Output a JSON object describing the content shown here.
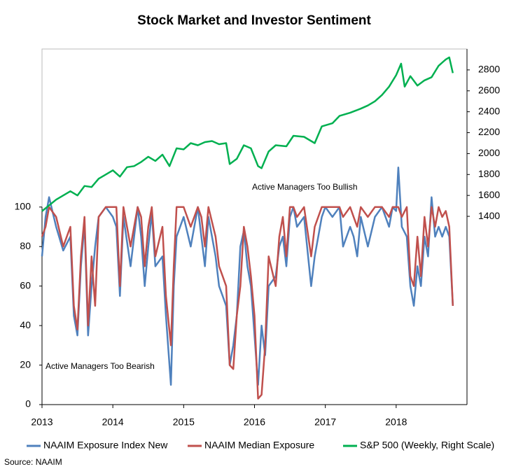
{
  "chart_data": {
    "type": "line",
    "title": "Stock Market and Investor Sentiment",
    "source": "Source:  NAAIM",
    "annotations": [
      "Active Managers  Too Bullish",
      "Active Managers  Too Bearish"
    ],
    "xlim": [
      2013,
      2019
    ],
    "xticks": [
      2013,
      2014,
      2015,
      2016,
      2017,
      2018
    ],
    "ylim": [
      0,
      180
    ],
    "yticks": [
      0,
      20,
      40,
      60,
      80,
      100
    ],
    "y2lim": [
      -400,
      3000
    ],
    "y2ticks": [
      1400,
      1600,
      1800,
      2000,
      2200,
      2400,
      2600,
      2800
    ],
    "series": [
      {
        "name": "NAAIM Exposure Index New",
        "color": "#4f81bd",
        "x": [
          2013.0,
          2013.05,
          2013.1,
          2013.2,
          2013.3,
          2013.4,
          2013.45,
          2013.5,
          2013.55,
          2013.6,
          2013.65,
          2013.7,
          2013.75,
          2013.8,
          2013.9,
          2014.0,
          2014.05,
          2014.1,
          2014.15,
          2014.25,
          2014.35,
          2014.4,
          2014.45,
          2014.5,
          2014.55,
          2014.6,
          2014.7,
          2014.75,
          2014.82,
          2014.86,
          2014.9,
          2015.0,
          2015.1,
          2015.2,
          2015.25,
          2015.3,
          2015.35,
          2015.45,
          2015.5,
          2015.55,
          2015.6,
          2015.65,
          2015.7,
          2015.75,
          2015.8,
          2015.85,
          2015.9,
          2015.95,
          2016.0,
          2016.05,
          2016.1,
          2016.15,
          2016.2,
          2016.3,
          2016.35,
          2016.4,
          2016.45,
          2016.5,
          2016.55,
          2016.6,
          2016.7,
          2016.8,
          2016.85,
          2016.95,
          2017.0,
          2017.1,
          2017.2,
          2017.25,
          2017.35,
          2017.4,
          2017.45,
          2017.5,
          2017.6,
          2017.7,
          2017.8,
          2017.9,
          2017.95,
          2018.0,
          2018.03,
          2018.08,
          2018.15,
          2018.2,
          2018.25,
          2018.3,
          2018.35,
          2018.4,
          2018.45,
          2018.5,
          2018.55,
          2018.6,
          2018.65,
          2018.7,
          2018.75,
          2018.8
        ],
        "values": [
          75,
          95,
          105,
          90,
          78,
          85,
          45,
          35,
          70,
          92,
          35,
          60,
          80,
          95,
          100,
          95,
          90,
          55,
          95,
          70,
          100,
          85,
          60,
          80,
          97,
          70,
          75,
          45,
          10,
          60,
          85,
          95,
          80,
          100,
          85,
          70,
          95,
          75,
          60,
          55,
          50,
          20,
          30,
          45,
          80,
          88,
          70,
          60,
          35,
          10,
          40,
          25,
          60,
          65,
          80,
          85,
          70,
          95,
          100,
          90,
          95,
          60,
          75,
          95,
          100,
          95,
          100,
          80,
          90,
          85,
          75,
          95,
          80,
          95,
          100,
          90,
          100,
          98,
          120,
          90,
          85,
          60,
          50,
          70,
          60,
          85,
          75,
          105,
          85,
          90,
          85,
          90,
          85,
          50
        ]
      },
      {
        "name": "NAAIM Median Exposure",
        "color": "#c0504d",
        "x": [
          2013.0,
          2013.05,
          2013.1,
          2013.2,
          2013.3,
          2013.4,
          2013.45,
          2013.5,
          2013.55,
          2013.6,
          2013.65,
          2013.7,
          2013.75,
          2013.8,
          2013.9,
          2014.0,
          2014.05,
          2014.1,
          2014.15,
          2014.25,
          2014.35,
          2014.4,
          2014.45,
          2014.5,
          2014.55,
          2014.6,
          2014.7,
          2014.75,
          2014.82,
          2014.86,
          2014.9,
          2015.0,
          2015.1,
          2015.2,
          2015.25,
          2015.3,
          2015.35,
          2015.45,
          2015.5,
          2015.55,
          2015.6,
          2015.65,
          2015.7,
          2015.75,
          2015.8,
          2015.85,
          2015.9,
          2015.95,
          2016.0,
          2016.05,
          2016.1,
          2016.15,
          2016.2,
          2016.3,
          2016.35,
          2016.4,
          2016.45,
          2016.5,
          2016.55,
          2016.6,
          2016.7,
          2016.8,
          2016.85,
          2016.95,
          2017.0,
          2017.1,
          2017.2,
          2017.25,
          2017.35,
          2017.4,
          2017.45,
          2017.5,
          2017.6,
          2017.7,
          2017.8,
          2017.9,
          2017.95,
          2018.0,
          2018.03,
          2018.08,
          2018.15,
          2018.2,
          2018.25,
          2018.3,
          2018.35,
          2018.4,
          2018.45,
          2018.5,
          2018.55,
          2018.6,
          2018.65,
          2018.7,
          2018.75,
          2018.8
        ],
        "values": [
          85,
          90,
          100,
          95,
          80,
          90,
          50,
          38,
          75,
          95,
          40,
          75,
          50,
          95,
          100,
          100,
          100,
          60,
          100,
          80,
          100,
          95,
          70,
          90,
          100,
          75,
          90,
          55,
          30,
          70,
          100,
          100,
          90,
          100,
          95,
          80,
          100,
          85,
          70,
          65,
          60,
          20,
          18,
          45,
          60,
          90,
          80,
          65,
          45,
          3,
          5,
          30,
          75,
          60,
          85,
          95,
          75,
          100,
          100,
          95,
          100,
          75,
          90,
          100,
          100,
          100,
          100,
          95,
          100,
          95,
          90,
          100,
          95,
          100,
          100,
          95,
          100,
          100,
          100,
          95,
          100,
          65,
          60,
          85,
          65,
          95,
          80,
          100,
          90,
          100,
          95,
          98,
          90,
          50
        ]
      },
      {
        "name": "S&P 500 (Weekly, Right Scale)",
        "color": "#00b050",
        "axis": "y2",
        "x": [
          2013.0,
          2013.2,
          2013.4,
          2013.5,
          2013.6,
          2013.7,
          2013.8,
          2013.9,
          2014.0,
          2014.1,
          2014.2,
          2014.3,
          2014.4,
          2014.5,
          2014.6,
          2014.7,
          2014.8,
          2014.9,
          2015.0,
          2015.1,
          2015.2,
          2015.3,
          2015.4,
          2015.5,
          2015.6,
          2015.65,
          2015.75,
          2015.85,
          2015.95,
          2016.05,
          2016.1,
          2016.2,
          2016.3,
          2016.45,
          2016.55,
          2016.7,
          2016.85,
          2016.95,
          2017.1,
          2017.2,
          2017.35,
          2017.5,
          2017.6,
          2017.7,
          2017.8,
          2017.9,
          2018.0,
          2018.07,
          2018.12,
          2018.2,
          2018.3,
          2018.4,
          2018.5,
          2018.6,
          2018.7,
          2018.75,
          2018.8
        ],
        "values": [
          1450,
          1560,
          1640,
          1600,
          1690,
          1680,
          1760,
          1800,
          1840,
          1780,
          1870,
          1880,
          1920,
          1970,
          1930,
          1990,
          1880,
          2050,
          2040,
          2100,
          2080,
          2110,
          2120,
          2090,
          2100,
          1900,
          1950,
          2080,
          2050,
          1880,
          1860,
          2020,
          2080,
          2070,
          2170,
          2160,
          2100,
          2260,
          2290,
          2360,
          2390,
          2430,
          2460,
          2500,
          2560,
          2640,
          2750,
          2860,
          2640,
          2740,
          2650,
          2700,
          2730,
          2840,
          2900,
          2920,
          2770
        ]
      }
    ]
  }
}
